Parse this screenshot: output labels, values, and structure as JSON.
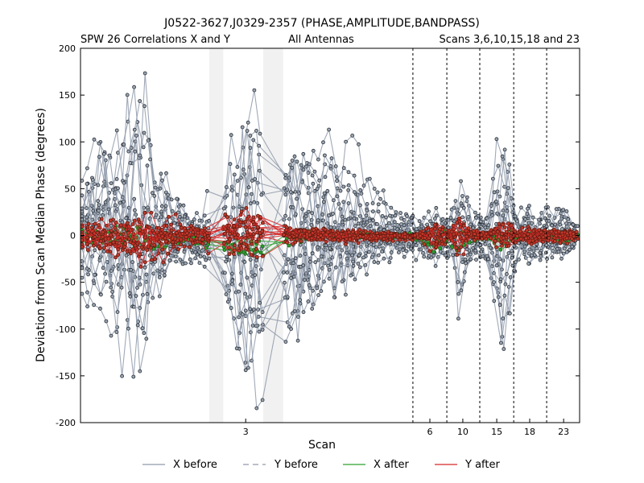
{
  "chart_data": {
    "type": "line",
    "title": "J0522-3627,J0329-2357 (PHASE,AMPLITUDE,BANDPASS)",
    "subtitle_left": "SPW 26 Correlations X and Y",
    "subtitle_center": "All Antennas",
    "subtitle_right": "Scans 3,6,10,15,18 and 23",
    "xlabel": "Scan",
    "ylabel": "Deviation from Scan Median Phase (degrees)",
    "ylim": [
      -200,
      200
    ],
    "yticks": [
      -200,
      -150,
      -100,
      -50,
      0,
      50,
      100,
      150,
      200
    ],
    "xlim": [
      0,
      100
    ],
    "scan_ticks": [
      {
        "label": "3",
        "x": 33.1
      },
      {
        "label": "6",
        "x": 70.0
      },
      {
        "label": "10",
        "x": 76.6
      },
      {
        "label": "15",
        "x": 83.4
      },
      {
        "label": "18",
        "x": 90.0
      },
      {
        "label": "23",
        "x": 96.8
      }
    ],
    "scan_boundaries": [
      66.6,
      73.4,
      80.0,
      86.8,
      93.4
    ],
    "flagged_regions": [
      [
        25.8,
        28.6
      ],
      [
        36.6,
        40.6
      ]
    ],
    "grid": false,
    "legend_position": "bottom-center",
    "series": [
      {
        "name": "X before",
        "color": "#8f9aaa",
        "style": "solid"
      },
      {
        "name": "Y before",
        "color": "#8f9aaa",
        "style": "dashed"
      },
      {
        "name": "X after",
        "color": "#2ca02c",
        "style": "solid"
      },
      {
        "name": "Y after",
        "color": "#d62728",
        "style": "solid"
      }
    ],
    "envelope": {
      "x": [
        0,
        2,
        4,
        6,
        8,
        10,
        12,
        14,
        16,
        18,
        20,
        22,
        24,
        26,
        28,
        30,
        32,
        34,
        36,
        38,
        40,
        42,
        44,
        46,
        48,
        50,
        52,
        54,
        56,
        58,
        60,
        62,
        64,
        66,
        68,
        70,
        72,
        74,
        76,
        78,
        80,
        82,
        84,
        86,
        88,
        90,
        92,
        94,
        96,
        98,
        100
      ],
      "before": [
        60,
        75,
        90,
        105,
        120,
        130,
        160,
        110,
        80,
        60,
        40,
        30,
        30,
        40,
        60,
        90,
        120,
        150,
        140,
        110,
        90,
        110,
        95,
        85,
        80,
        90,
        70,
        85,
        70,
        45,
        40,
        35,
        30,
        25,
        20,
        40,
        25,
        25,
        60,
        25,
        20,
        30,
        115,
        70,
        20,
        35,
        25,
        30,
        30,
        20,
        10
      ],
      "after": [
        25,
        30,
        35,
        35,
        45,
        50,
        55,
        45,
        35,
        30,
        25,
        20,
        20,
        25,
        30,
        35,
        40,
        45,
        40,
        30,
        20,
        20,
        15,
        15,
        12,
        15,
        10,
        15,
        10,
        8,
        8,
        10,
        8,
        8,
        6,
        25,
        30,
        10,
        45,
        10,
        8,
        10,
        25,
        25,
        10,
        20,
        10,
        12,
        12,
        10,
        5
      ]
    }
  }
}
